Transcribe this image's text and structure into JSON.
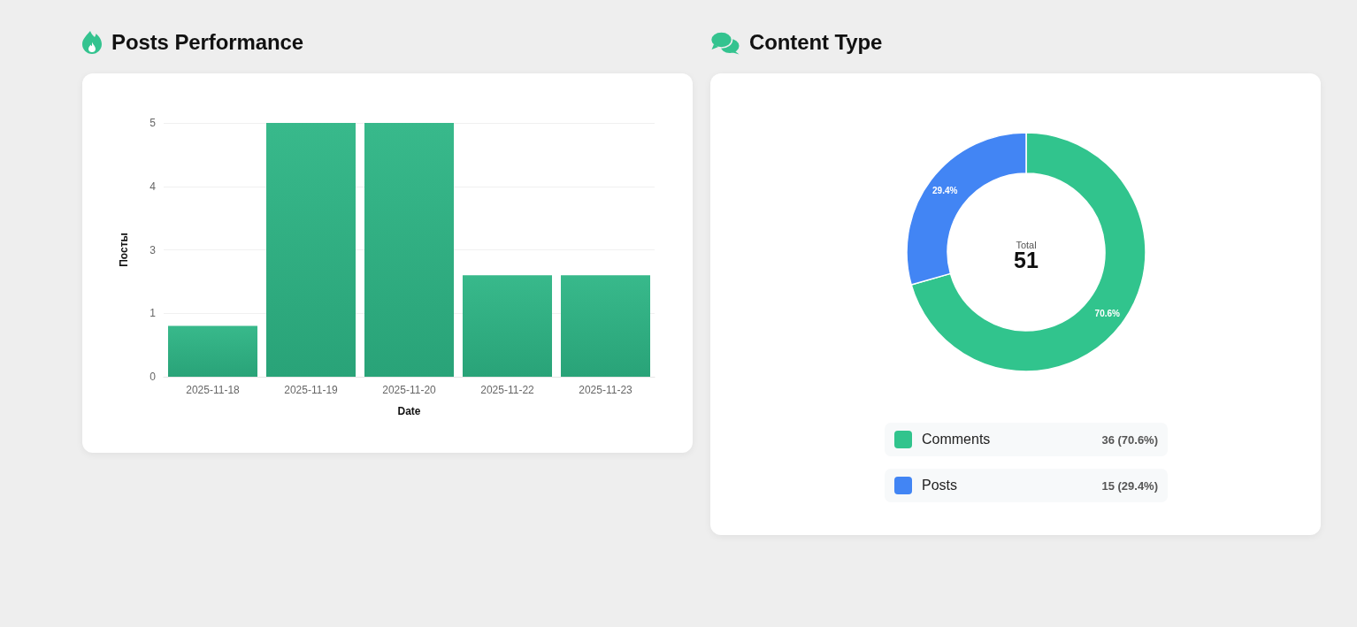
{
  "chart_data": [
    {
      "type": "bar",
      "title": "Posts Performance",
      "categories": [
        "2025-11-18",
        "2025-11-19",
        "2025-11-20",
        "2025-11-22",
        "2025-11-23"
      ],
      "values": [
        1,
        5,
        5,
        2,
        2
      ],
      "color": "#2db585",
      "xlabel": "Date",
      "ylabel": "Посты",
      "ylim": [
        0,
        5
      ],
      "yticks": [
        0,
        {
          "value": 1.25,
          "label": "1"
        },
        {
          "value": 2.5,
          "label": "3"
        },
        {
          "value": 3.75,
          "label": "4"
        },
        5
      ],
      "grid": "y"
    },
    {
      "type": "donut",
      "title": "Content Type",
      "categories": [
        "Comments",
        "Posts"
      ],
      "values": [
        36,
        15
      ],
      "colors": [
        "#31c48d",
        "#4285f4"
      ],
      "value_labels": [
        "36 (70.6%)",
        "15 (29.4%)"
      ],
      "annotations": [
        "Total",
        "51",
        {
          "text": "70.6%",
          "x": "Comments"
        },
        {
          "text": "29.4%",
          "x": "Posts"
        }
      ],
      "legend": "bottom"
    }
  ]
}
